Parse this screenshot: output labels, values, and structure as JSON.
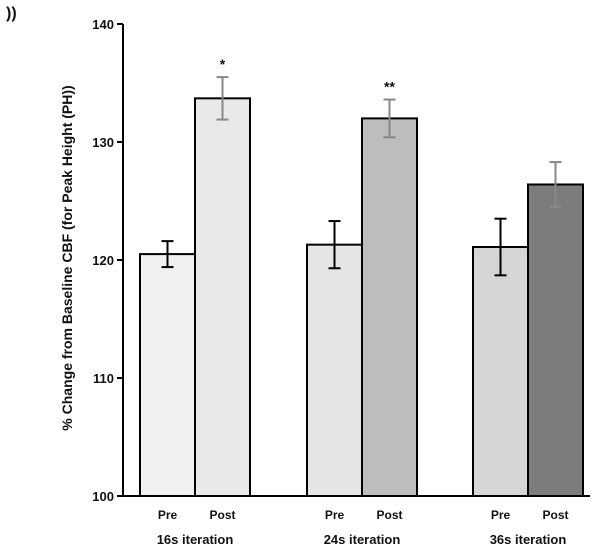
{
  "panel_mark": "))",
  "chart_data": {
    "type": "bar",
    "ylabel": "% Change from Baseline CBF (for Peak Height (PH))",
    "ylim": [
      100,
      140
    ],
    "yticks": [
      "100",
      "110",
      "120",
      "130",
      "140"
    ],
    "groups": [
      {
        "label": "16s iteration",
        "bars": [
          {
            "label": "Pre",
            "value": 120.5,
            "error": 1.1,
            "fill": "#f1f1f1",
            "error_color": "#000000",
            "significance": ""
          },
          {
            "label": "Post",
            "value": 133.7,
            "error": 1.8,
            "fill": "#e9e9e9",
            "error_color": "#888888",
            "significance": "*"
          }
        ]
      },
      {
        "label": "24s iteration",
        "bars": [
          {
            "label": "Pre",
            "value": 121.3,
            "error": 2.0,
            "fill": "#e6e6e6",
            "error_color": "#000000",
            "significance": ""
          },
          {
            "label": "Post",
            "value": 132.0,
            "error": 1.6,
            "fill": "#bdbdbd",
            "error_color": "#888888",
            "significance": "**"
          }
        ]
      },
      {
        "label": "36s iteration",
        "bars": [
          {
            "label": "Pre",
            "value": 121.1,
            "error": 2.4,
            "fill": "#d6d6d6",
            "error_color": "#000000",
            "significance": ""
          },
          {
            "label": "Post",
            "value": 126.4,
            "error": 1.9,
            "fill": "#7c7c7c",
            "error_color": "#888888",
            "significance": ""
          }
        ]
      }
    ]
  }
}
